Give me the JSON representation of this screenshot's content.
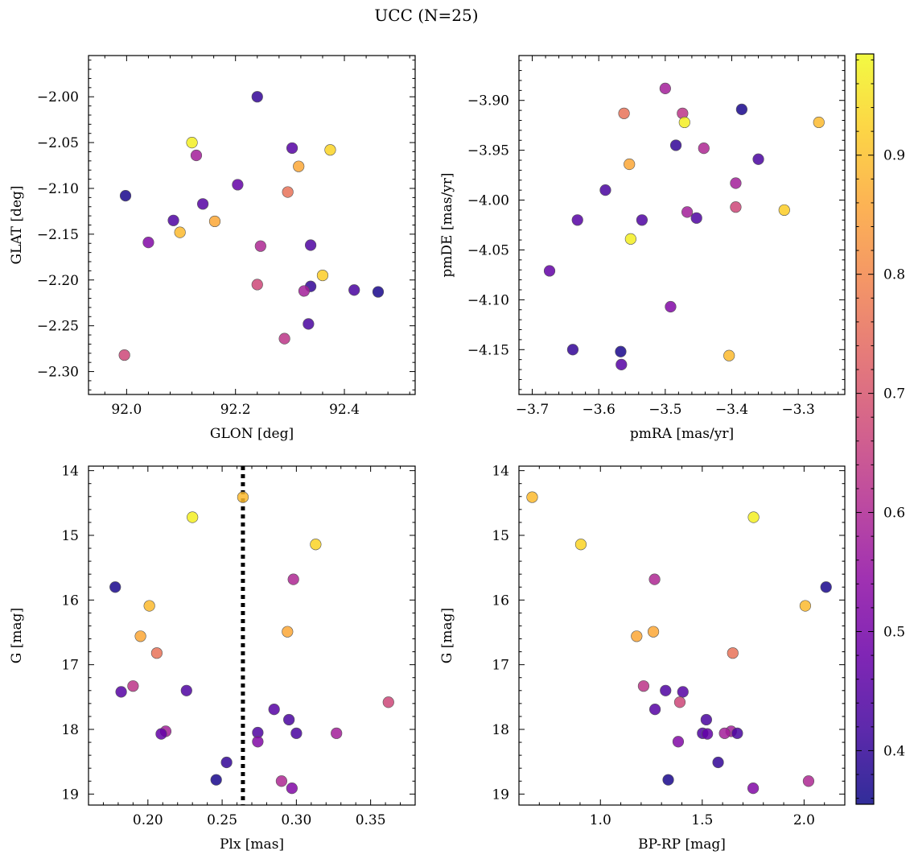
{
  "figure": {
    "suptitle": "UCC (N=25)",
    "colormap": "plasma",
    "marker_alpha": 0.85,
    "marker_edge": "#555555"
  },
  "colorbar": {
    "range": [
      0.355,
      0.985
    ],
    "ticks": [
      0.4,
      0.5,
      0.6,
      0.7,
      0.8,
      0.9
    ],
    "tick_labels": [
      "0.4",
      "0.5",
      "0.6",
      "0.7",
      "0.8",
      "0.9"
    ]
  },
  "chart_data": [
    {
      "type": "scatter",
      "id": "glon-glat",
      "xlabel": "GLON [deg]",
      "ylabel": "GLAT [deg]",
      "xlim": [
        91.93,
        92.53
      ],
      "ylim": [
        -2.325,
        -1.955
      ],
      "y_inverted": false,
      "xticks": [
        92.0,
        92.2,
        92.4
      ],
      "xtick_labels": [
        "92.0",
        "92.2",
        "92.4"
      ],
      "yticks": [
        -2.3,
        -2.25,
        -2.2,
        -2.15,
        -2.1,
        -2.05,
        -2.0
      ],
      "ytick_labels": [
        "−2.30",
        "−2.25",
        "−2.20",
        "−2.15",
        "−2.10",
        "−2.05",
        "−2.00"
      ],
      "points": [
        {
          "x": 92.24,
          "y": -2.0,
          "c": 0.4
        },
        {
          "x": 92.12,
          "y": -2.05,
          "c": 0.97
        },
        {
          "x": 92.374,
          "y": -2.058,
          "c": 0.93
        },
        {
          "x": 92.304,
          "y": -2.056,
          "c": 0.45
        },
        {
          "x": 92.128,
          "y": -2.064,
          "c": 0.58
        },
        {
          "x": 92.316,
          "y": -2.076,
          "c": 0.86
        },
        {
          "x": 92.204,
          "y": -2.096,
          "c": 0.47
        },
        {
          "x": 92.296,
          "y": -2.104,
          "c": 0.76
        },
        {
          "x": 91.998,
          "y": -2.108,
          "c": 0.37
        },
        {
          "x": 92.14,
          "y": -2.117,
          "c": 0.45
        },
        {
          "x": 92.086,
          "y": -2.135,
          "c": 0.44
        },
        {
          "x": 92.162,
          "y": -2.136,
          "c": 0.86
        },
        {
          "x": 92.098,
          "y": -2.148,
          "c": 0.89
        },
        {
          "x": 92.04,
          "y": -2.159,
          "c": 0.52
        },
        {
          "x": 92.246,
          "y": -2.163,
          "c": 0.6
        },
        {
          "x": 92.338,
          "y": -2.162,
          "c": 0.44
        },
        {
          "x": 92.36,
          "y": -2.195,
          "c": 0.92
        },
        {
          "x": 92.24,
          "y": -2.205,
          "c": 0.67
        },
        {
          "x": 92.338,
          "y": -2.207,
          "c": 0.4
        },
        {
          "x": 92.326,
          "y": -2.212,
          "c": 0.58
        },
        {
          "x": 92.418,
          "y": -2.211,
          "c": 0.43
        },
        {
          "x": 92.462,
          "y": -2.213,
          "c": 0.37
        },
        {
          "x": 92.334,
          "y": -2.248,
          "c": 0.43
        },
        {
          "x": 92.29,
          "y": -2.264,
          "c": 0.63
        },
        {
          "x": 91.996,
          "y": -2.282,
          "c": 0.67
        }
      ]
    },
    {
      "type": "scatter",
      "id": "pmra-pmde",
      "xlabel": "pmRA [mas/yr]",
      "ylabel": "pmDE [mas/yr]",
      "xlim": [
        -3.72,
        -3.23
      ],
      "ylim": [
        -4.195,
        -3.855
      ],
      "y_inverted": false,
      "xticks": [
        -3.7,
        -3.6,
        -3.5,
        -3.4,
        -3.3
      ],
      "xtick_labels": [
        "−3.7",
        "−3.6",
        "−3.5",
        "−3.4",
        "−3.3"
      ],
      "yticks": [
        -4.15,
        -4.1,
        -4.05,
        -4.0,
        -3.95,
        -3.9
      ],
      "ytick_labels": [
        "−4.15",
        "−4.10",
        "−4.05",
        "−4.00",
        "−3.95",
        "−3.90"
      ],
      "points": [
        {
          "x": -3.5,
          "y": -3.888,
          "c": 0.58
        },
        {
          "x": -3.385,
          "y": -3.909,
          "c": 0.37
        },
        {
          "x": -3.562,
          "y": -3.913,
          "c": 0.76
        },
        {
          "x": -3.474,
          "y": -3.913,
          "c": 0.63
        },
        {
          "x": -3.471,
          "y": -3.922,
          "c": 0.97
        },
        {
          "x": -3.269,
          "y": -3.922,
          "c": 0.89
        },
        {
          "x": -3.484,
          "y": -3.945,
          "c": 0.4
        },
        {
          "x": -3.442,
          "y": -3.948,
          "c": 0.6
        },
        {
          "x": -3.36,
          "y": -3.959,
          "c": 0.43
        },
        {
          "x": -3.554,
          "y": -3.964,
          "c": 0.86
        },
        {
          "x": -3.394,
          "y": -3.983,
          "c": 0.58
        },
        {
          "x": -3.59,
          "y": -3.99,
          "c": 0.43
        },
        {
          "x": -3.394,
          "y": -4.007,
          "c": 0.67
        },
        {
          "x": -3.321,
          "y": -4.01,
          "c": 0.92
        },
        {
          "x": -3.467,
          "y": -4.012,
          "c": 0.58
        },
        {
          "x": -3.453,
          "y": -4.018,
          "c": 0.44
        },
        {
          "x": -3.632,
          "y": -4.02,
          "c": 0.45
        },
        {
          "x": -3.535,
          "y": -4.02,
          "c": 0.44
        },
        {
          "x": -3.552,
          "y": -4.039,
          "c": 0.97
        },
        {
          "x": -3.674,
          "y": -4.071,
          "c": 0.47
        },
        {
          "x": -3.492,
          "y": -4.107,
          "c": 0.52
        },
        {
          "x": -3.639,
          "y": -4.15,
          "c": 0.4
        },
        {
          "x": -3.567,
          "y": -4.152,
          "c": 0.37
        },
        {
          "x": -3.404,
          "y": -4.156,
          "c": 0.89
        },
        {
          "x": -3.566,
          "y": -4.165,
          "c": 0.45
        }
      ]
    },
    {
      "type": "scatter",
      "id": "plx-g",
      "xlabel": "Plx [mas]",
      "ylabel": "G [mag]",
      "xlim": [
        0.16,
        0.38
      ],
      "ylim": [
        19.17,
        13.93
      ],
      "y_inverted": true,
      "xticks": [
        0.2,
        0.25,
        0.3,
        0.35
      ],
      "xtick_labels": [
        "0.20",
        "0.25",
        "0.30",
        "0.35"
      ],
      "yticks": [
        14,
        15,
        16,
        17,
        18,
        19
      ],
      "ytick_labels": [
        "14",
        "15",
        "16",
        "17",
        "18",
        "19"
      ],
      "vline": {
        "x": 0.264
      },
      "points": [
        {
          "x": 0.264,
          "y": 14.41,
          "c": 0.89
        },
        {
          "x": 0.23,
          "y": 14.72,
          "c": 0.97
        },
        {
          "x": 0.313,
          "y": 15.14,
          "c": 0.93
        },
        {
          "x": 0.298,
          "y": 15.68,
          "c": 0.6
        },
        {
          "x": 0.178,
          "y": 15.8,
          "c": 0.37
        },
        {
          "x": 0.201,
          "y": 16.09,
          "c": 0.89
        },
        {
          "x": 0.294,
          "y": 16.49,
          "c": 0.86
        },
        {
          "x": 0.195,
          "y": 16.56,
          "c": 0.86
        },
        {
          "x": 0.206,
          "y": 16.82,
          "c": 0.76
        },
        {
          "x": 0.19,
          "y": 17.33,
          "c": 0.63
        },
        {
          "x": 0.226,
          "y": 17.4,
          "c": 0.44
        },
        {
          "x": 0.182,
          "y": 17.42,
          "c": 0.45
        },
        {
          "x": 0.362,
          "y": 17.58,
          "c": 0.67
        },
        {
          "x": 0.285,
          "y": 17.69,
          "c": 0.45
        },
        {
          "x": 0.295,
          "y": 17.85,
          "c": 0.43
        },
        {
          "x": 0.212,
          "y": 18.03,
          "c": 0.58
        },
        {
          "x": 0.274,
          "y": 18.05,
          "c": 0.44
        },
        {
          "x": 0.3,
          "y": 18.06,
          "c": 0.43
        },
        {
          "x": 0.327,
          "y": 18.06,
          "c": 0.58
        },
        {
          "x": 0.209,
          "y": 18.07,
          "c": 0.47
        },
        {
          "x": 0.274,
          "y": 18.19,
          "c": 0.52
        },
        {
          "x": 0.253,
          "y": 18.51,
          "c": 0.4
        },
        {
          "x": 0.246,
          "y": 18.78,
          "c": 0.37
        },
        {
          "x": 0.29,
          "y": 18.8,
          "c": 0.6
        },
        {
          "x": 0.297,
          "y": 18.91,
          "c": 0.52
        }
      ]
    },
    {
      "type": "scatter",
      "id": "bprp-g",
      "xlabel": "BP-RP [mag]",
      "ylabel": "G [mag]",
      "xlim": [
        0.6,
        2.2
      ],
      "ylim": [
        19.17,
        13.93
      ],
      "y_inverted": true,
      "xticks": [
        1.0,
        1.5,
        2.0
      ],
      "xtick_labels": [
        "1.0",
        "1.5",
        "2.0"
      ],
      "yticks": [
        14,
        15,
        16,
        17,
        18,
        19
      ],
      "ytick_labels": [
        "14",
        "15",
        "16",
        "17",
        "18",
        "19"
      ],
      "points": [
        {
          "x": 0.665,
          "y": 14.41,
          "c": 0.89
        },
        {
          "x": 1.752,
          "y": 14.72,
          "c": 0.97
        },
        {
          "x": 0.904,
          "y": 15.14,
          "c": 0.93
        },
        {
          "x": 1.266,
          "y": 15.68,
          "c": 0.6
        },
        {
          "x": 2.108,
          "y": 15.8,
          "c": 0.37
        },
        {
          "x": 2.006,
          "y": 16.09,
          "c": 0.89
        },
        {
          "x": 1.26,
          "y": 16.49,
          "c": 0.86
        },
        {
          "x": 1.178,
          "y": 16.56,
          "c": 0.86
        },
        {
          "x": 1.65,
          "y": 16.82,
          "c": 0.76
        },
        {
          "x": 1.212,
          "y": 17.33,
          "c": 0.63
        },
        {
          "x": 1.32,
          "y": 17.4,
          "c": 0.44
        },
        {
          "x": 1.405,
          "y": 17.42,
          "c": 0.45
        },
        {
          "x": 1.39,
          "y": 17.58,
          "c": 0.67
        },
        {
          "x": 1.268,
          "y": 17.69,
          "c": 0.45
        },
        {
          "x": 1.52,
          "y": 17.85,
          "c": 0.43
        },
        {
          "x": 1.642,
          "y": 18.03,
          "c": 0.58
        },
        {
          "x": 1.502,
          "y": 18.06,
          "c": 0.44
        },
        {
          "x": 1.672,
          "y": 18.06,
          "c": 0.43
        },
        {
          "x": 1.61,
          "y": 18.06,
          "c": 0.58
        },
        {
          "x": 1.525,
          "y": 18.07,
          "c": 0.47
        },
        {
          "x": 1.382,
          "y": 18.19,
          "c": 0.52
        },
        {
          "x": 1.578,
          "y": 18.51,
          "c": 0.4
        },
        {
          "x": 1.333,
          "y": 18.78,
          "c": 0.37
        },
        {
          "x": 2.022,
          "y": 18.8,
          "c": 0.6
        },
        {
          "x": 1.75,
          "y": 18.91,
          "c": 0.52
        }
      ]
    }
  ]
}
